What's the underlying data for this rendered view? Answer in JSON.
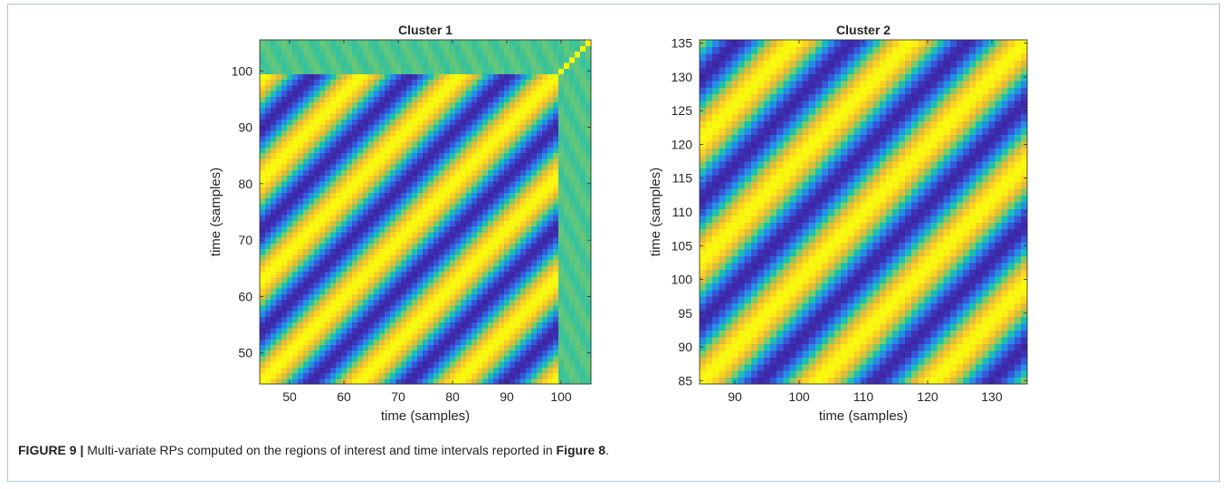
{
  "caption": {
    "label": "FIGURE 9 |",
    "text": " Multi-variate RPs computed on the regions of interest and time intervals reported in ",
    "ref": "Figure 8",
    "end": "."
  },
  "chart_data": [
    {
      "type": "heatmap",
      "title": "Cluster 1",
      "xlabel": "time (samples)",
      "ylabel": "time (samples)",
      "xlim": [
        44.5,
        105.5
      ],
      "ylim": [
        44.5,
        105.5
      ],
      "xticks": [
        50,
        60,
        70,
        80,
        90,
        100
      ],
      "yticks": [
        50,
        60,
        70,
        80,
        90,
        100
      ],
      "pattern": "diagonal-stripes",
      "stripe_period": 18,
      "pattern_block": [
        45,
        99
      ],
      "outside_block_level": 0.5,
      "diagonal_level": 1.0,
      "colormap": [
        "#3e26a8",
        "#2e7cf7",
        "#13beb8",
        "#89cb5e",
        "#fbb731",
        "#f9fb0e"
      ]
    },
    {
      "type": "heatmap",
      "title": "Cluster 2",
      "xlabel": "time (samples)",
      "ylabel": "time (samples)",
      "xlim": [
        84.5,
        135.5
      ],
      "ylim": [
        84.5,
        135.5
      ],
      "xticks": [
        90,
        100,
        110,
        120,
        130
      ],
      "yticks": [
        85,
        90,
        95,
        100,
        105,
        110,
        115,
        120,
        125,
        130,
        135
      ],
      "pattern": "diagonal-stripes",
      "stripe_period": 18,
      "pattern_block": [
        85,
        135
      ],
      "outside_block_level": 0.5,
      "diagonal_level": 1.0,
      "colormap": [
        "#3e26a8",
        "#2e7cf7",
        "#13beb8",
        "#89cb5e",
        "#fbb731",
        "#f9fb0e"
      ]
    }
  ]
}
